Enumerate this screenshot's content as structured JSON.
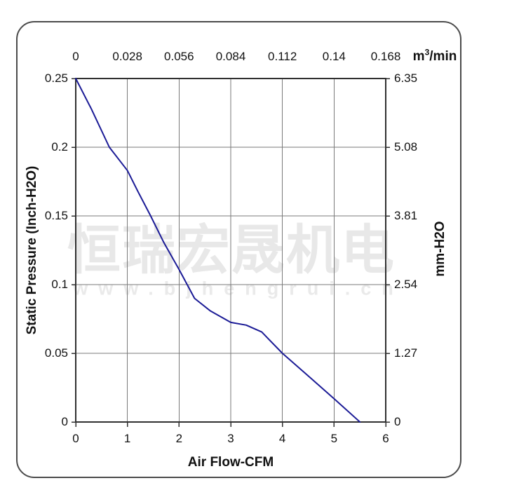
{
  "watermark": {
    "brand": "恒瑞宏晟机电",
    "url": "www.bjhengrui.cn"
  },
  "chart_data": {
    "type": "line",
    "title": "",
    "grid": true,
    "x_bottom": {
      "label": "Air Flow-CFM",
      "ticks": [
        "0",
        "1",
        "2",
        "3",
        "4",
        "5",
        "6"
      ],
      "range": [
        0,
        6
      ]
    },
    "x_top": {
      "unit_base": "m",
      "unit_sup": "3",
      "unit_rest": "/min",
      "ticks": [
        "0",
        "0.028",
        "0.056",
        "0.084",
        "0.112",
        "0.14",
        "0.168"
      ]
    },
    "y_left": {
      "label": "Static Pressure (Inch-H2O)",
      "ticks": [
        "0.25",
        "0.2",
        "0.15",
        "0.1",
        "0.05",
        "0"
      ],
      "range": [
        0,
        0.25
      ]
    },
    "y_right": {
      "label": "mm-H2O",
      "ticks": [
        "6.35",
        "5.08",
        "3.81",
        "2.54",
        "1.27",
        "0"
      ]
    },
    "series": [
      {
        "name": "static-pressure-vs-airflow",
        "color": "#1b1b96",
        "points": [
          [
            0,
            0.25
          ],
          [
            0.3,
            0.228
          ],
          [
            0.65,
            0.2
          ],
          [
            1.0,
            0.183
          ],
          [
            1.2,
            0.168
          ],
          [
            1.45,
            0.15
          ],
          [
            1.7,
            0.131
          ],
          [
            2.0,
            0.111
          ],
          [
            2.3,
            0.09
          ],
          [
            2.6,
            0.081
          ],
          [
            3.0,
            0.0725
          ],
          [
            3.3,
            0.0705
          ],
          [
            3.6,
            0.0655
          ],
          [
            4.0,
            0.05
          ],
          [
            4.5,
            0.0335
          ],
          [
            5.0,
            0.017
          ],
          [
            5.5,
            0
          ]
        ]
      }
    ],
    "colors": {
      "curve": "#1b1b96",
      "grid": "#7a7a7a",
      "plot_border": "#303030",
      "panel_border": "#4b4b4b",
      "text": "#111111",
      "watermark": "#e8e8e8"
    }
  }
}
